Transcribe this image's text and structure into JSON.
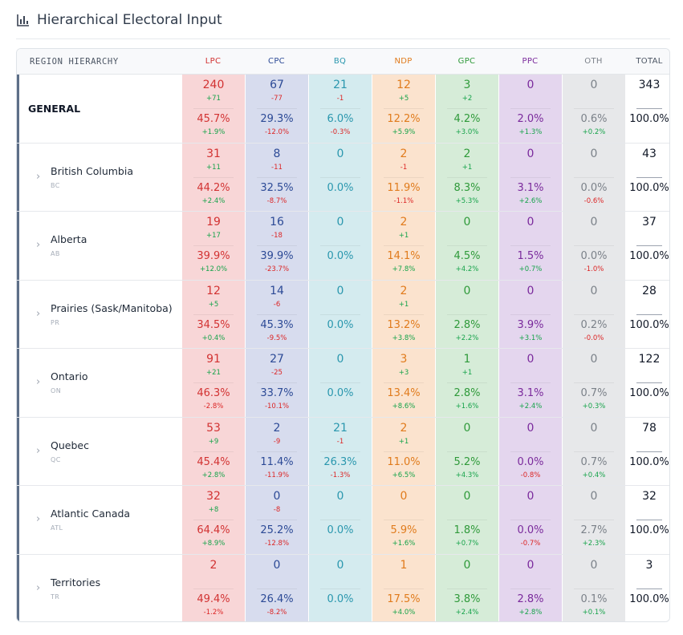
{
  "page": {
    "title": "Hierarchical Electoral Input",
    "icon": "bar-chart-icon"
  },
  "table": {
    "region_header": "REGION HIERARCHY",
    "total_header": "TOTAL",
    "parties": [
      {
        "key": "LPC",
        "label": "LPC",
        "color": "#d23232",
        "bg": "#f8d6d7"
      },
      {
        "key": "CPC",
        "label": "CPC",
        "color": "#2c4a96",
        "bg": "#d7dcee"
      },
      {
        "key": "BQ",
        "label": "BQ",
        "color": "#2a97ae",
        "bg": "#d4ebef"
      },
      {
        "key": "NDP",
        "label": "NDP",
        "color": "#e07b1c",
        "bg": "#fbe3ce"
      },
      {
        "key": "GPC",
        "label": "GPC",
        "color": "#2f9a3a",
        "bg": "#d6ecd8"
      },
      {
        "key": "PPC",
        "label": "PPC",
        "color": "#7a2a9c",
        "bg": "#e4d6ee"
      },
      {
        "key": "OTH",
        "label": "OTH",
        "color": "#7b8189",
        "bg": "#e7e8ea"
      }
    ],
    "rows": [
      {
        "name": "GENERAL",
        "code": "",
        "general": true,
        "cells": [
          {
            "seats": "240",
            "seat_delta": "+71",
            "pct": "45.7%",
            "pct_delta": "+1.9%"
          },
          {
            "seats": "67",
            "seat_delta": "-77",
            "pct": "29.3%",
            "pct_delta": "-12.0%"
          },
          {
            "seats": "21",
            "seat_delta": "-1",
            "pct": "6.0%",
            "pct_delta": "-0.3%"
          },
          {
            "seats": "12",
            "seat_delta": "+5",
            "pct": "12.2%",
            "pct_delta": "+5.9%"
          },
          {
            "seats": "3",
            "seat_delta": "+2",
            "pct": "4.2%",
            "pct_delta": "+3.0%"
          },
          {
            "seats": "0",
            "seat_delta": "",
            "pct": "2.0%",
            "pct_delta": "+1.3%"
          },
          {
            "seats": "0",
            "seat_delta": "",
            "pct": "0.6%",
            "pct_delta": "+0.2%"
          }
        ],
        "total_seats": "343",
        "total_pct": "100.0%"
      },
      {
        "name": "British Columbia",
        "code": "BC",
        "general": false,
        "cells": [
          {
            "seats": "31",
            "seat_delta": "+11",
            "pct": "44.2%",
            "pct_delta": "+2.4%"
          },
          {
            "seats": "8",
            "seat_delta": "-11",
            "pct": "32.5%",
            "pct_delta": "-8.7%"
          },
          {
            "seats": "0",
            "seat_delta": "",
            "pct": "0.0%",
            "pct_delta": ""
          },
          {
            "seats": "2",
            "seat_delta": "-1",
            "pct": "11.9%",
            "pct_delta": "-1.1%"
          },
          {
            "seats": "2",
            "seat_delta": "+1",
            "pct": "8.3%",
            "pct_delta": "+5.3%"
          },
          {
            "seats": "0",
            "seat_delta": "",
            "pct": "3.1%",
            "pct_delta": "+2.6%"
          },
          {
            "seats": "0",
            "seat_delta": "",
            "pct": "0.0%",
            "pct_delta": "-0.6%"
          }
        ],
        "total_seats": "43",
        "total_pct": "100.0%"
      },
      {
        "name": "Alberta",
        "code": "AB",
        "general": false,
        "cells": [
          {
            "seats": "19",
            "seat_delta": "+17",
            "pct": "39.9%",
            "pct_delta": "+12.0%"
          },
          {
            "seats": "16",
            "seat_delta": "-18",
            "pct": "39.9%",
            "pct_delta": "-23.7%"
          },
          {
            "seats": "0",
            "seat_delta": "",
            "pct": "0.0%",
            "pct_delta": ""
          },
          {
            "seats": "2",
            "seat_delta": "+1",
            "pct": "14.1%",
            "pct_delta": "+7.8%"
          },
          {
            "seats": "0",
            "seat_delta": "",
            "pct": "4.5%",
            "pct_delta": "+4.2%"
          },
          {
            "seats": "0",
            "seat_delta": "",
            "pct": "1.5%",
            "pct_delta": "+0.7%"
          },
          {
            "seats": "0",
            "seat_delta": "",
            "pct": "0.0%",
            "pct_delta": "-1.0%"
          }
        ],
        "total_seats": "37",
        "total_pct": "100.0%"
      },
      {
        "name": "Prairies (Sask/Manitoba)",
        "code": "PR",
        "general": false,
        "cells": [
          {
            "seats": "12",
            "seat_delta": "+5",
            "pct": "34.5%",
            "pct_delta": "+0.4%"
          },
          {
            "seats": "14",
            "seat_delta": "-6",
            "pct": "45.3%",
            "pct_delta": "-9.5%"
          },
          {
            "seats": "0",
            "seat_delta": "",
            "pct": "0.0%",
            "pct_delta": ""
          },
          {
            "seats": "2",
            "seat_delta": "+1",
            "pct": "13.2%",
            "pct_delta": "+3.8%"
          },
          {
            "seats": "0",
            "seat_delta": "",
            "pct": "2.8%",
            "pct_delta": "+2.2%"
          },
          {
            "seats": "0",
            "seat_delta": "",
            "pct": "3.9%",
            "pct_delta": "+3.1%"
          },
          {
            "seats": "0",
            "seat_delta": "",
            "pct": "0.2%",
            "pct_delta": "-0.0%"
          }
        ],
        "total_seats": "28",
        "total_pct": "100.0%"
      },
      {
        "name": "Ontario",
        "code": "ON",
        "general": false,
        "cells": [
          {
            "seats": "91",
            "seat_delta": "+21",
            "pct": "46.3%",
            "pct_delta": "-2.8%"
          },
          {
            "seats": "27",
            "seat_delta": "-25",
            "pct": "33.7%",
            "pct_delta": "-10.1%"
          },
          {
            "seats": "0",
            "seat_delta": "",
            "pct": "0.0%",
            "pct_delta": ""
          },
          {
            "seats": "3",
            "seat_delta": "+3",
            "pct": "13.4%",
            "pct_delta": "+8.6%"
          },
          {
            "seats": "1",
            "seat_delta": "+1",
            "pct": "2.8%",
            "pct_delta": "+1.6%"
          },
          {
            "seats": "0",
            "seat_delta": "",
            "pct": "3.1%",
            "pct_delta": "+2.4%"
          },
          {
            "seats": "0",
            "seat_delta": "",
            "pct": "0.7%",
            "pct_delta": "+0.3%"
          }
        ],
        "total_seats": "122",
        "total_pct": "100.0%"
      },
      {
        "name": "Quebec",
        "code": "QC",
        "general": false,
        "cells": [
          {
            "seats": "53",
            "seat_delta": "+9",
            "pct": "45.4%",
            "pct_delta": "+2.8%"
          },
          {
            "seats": "2",
            "seat_delta": "-9",
            "pct": "11.4%",
            "pct_delta": "-11.9%"
          },
          {
            "seats": "21",
            "seat_delta": "-1",
            "pct": "26.3%",
            "pct_delta": "-1.3%"
          },
          {
            "seats": "2",
            "seat_delta": "+1",
            "pct": "11.0%",
            "pct_delta": "+6.5%"
          },
          {
            "seats": "0",
            "seat_delta": "",
            "pct": "5.2%",
            "pct_delta": "+4.3%"
          },
          {
            "seats": "0",
            "seat_delta": "",
            "pct": "0.0%",
            "pct_delta": "-0.8%"
          },
          {
            "seats": "0",
            "seat_delta": "",
            "pct": "0.7%",
            "pct_delta": "+0.4%"
          }
        ],
        "total_seats": "78",
        "total_pct": "100.0%"
      },
      {
        "name": "Atlantic Canada",
        "code": "ATL",
        "general": false,
        "cells": [
          {
            "seats": "32",
            "seat_delta": "+8",
            "pct": "64.4%",
            "pct_delta": "+8.9%"
          },
          {
            "seats": "0",
            "seat_delta": "-8",
            "pct": "25.2%",
            "pct_delta": "-12.8%"
          },
          {
            "seats": "0",
            "seat_delta": "",
            "pct": "0.0%",
            "pct_delta": ""
          },
          {
            "seats": "0",
            "seat_delta": "",
            "pct": "5.9%",
            "pct_delta": "+1.6%"
          },
          {
            "seats": "0",
            "seat_delta": "",
            "pct": "1.8%",
            "pct_delta": "+0.7%"
          },
          {
            "seats": "0",
            "seat_delta": "",
            "pct": "0.0%",
            "pct_delta": "-0.7%"
          },
          {
            "seats": "0",
            "seat_delta": "",
            "pct": "2.7%",
            "pct_delta": "+2.3%"
          }
        ],
        "total_seats": "32",
        "total_pct": "100.0%"
      },
      {
        "name": "Territories",
        "code": "TR",
        "general": false,
        "cells": [
          {
            "seats": "2",
            "seat_delta": "",
            "pct": "49.4%",
            "pct_delta": "-1.2%"
          },
          {
            "seats": "0",
            "seat_delta": "",
            "pct": "26.4%",
            "pct_delta": "-8.2%"
          },
          {
            "seats": "0",
            "seat_delta": "",
            "pct": "0.0%",
            "pct_delta": ""
          },
          {
            "seats": "1",
            "seat_delta": "",
            "pct": "17.5%",
            "pct_delta": "+4.0%"
          },
          {
            "seats": "0",
            "seat_delta": "",
            "pct": "3.8%",
            "pct_delta": "+2.4%"
          },
          {
            "seats": "0",
            "seat_delta": "",
            "pct": "2.8%",
            "pct_delta": "+2.8%"
          },
          {
            "seats": "0",
            "seat_delta": "",
            "pct": "0.1%",
            "pct_delta": "+0.1%"
          }
        ],
        "total_seats": "3",
        "total_pct": "100.0%"
      }
    ]
  }
}
